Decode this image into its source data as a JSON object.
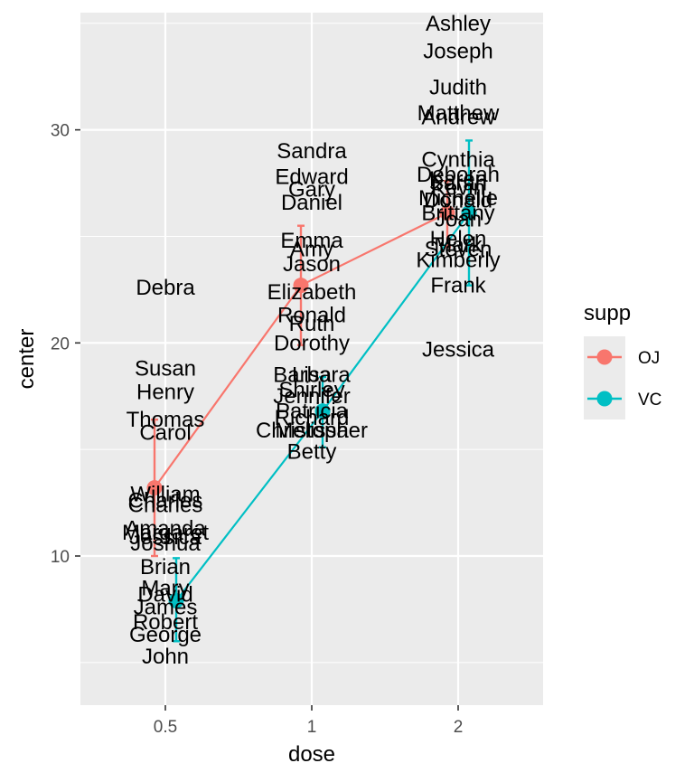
{
  "chart_data": {
    "type": "line",
    "title": "",
    "xlabel": "dose",
    "ylabel": "center",
    "categories": [
      "0.5",
      "1",
      "2"
    ],
    "ylim": [
      3,
      35.5
    ],
    "yticks": [
      10,
      20,
      30
    ],
    "grid": true,
    "legend": {
      "title": "supp",
      "position": "right",
      "entries": [
        "OJ",
        "VC"
      ]
    },
    "series": [
      {
        "name": "OJ",
        "color": "#F8766D",
        "means": [
          13.2,
          22.7,
          26.1
        ],
        "lower": [
          10.0,
          19.9,
          24.5
        ],
        "upper": [
          16.4,
          25.5,
          27.6
        ]
      },
      {
        "name": "VC",
        "color": "#00BFC4",
        "means": [
          7.9,
          16.8,
          26.1
        ],
        "lower": [
          6.0,
          15.1,
          22.7
        ],
        "upper": [
          9.9,
          18.4,
          29.5
        ]
      }
    ],
    "labels": [
      {
        "text": "Ashley",
        "x": "2",
        "y": 35.0
      },
      {
        "text": "Joseph",
        "x": "2",
        "y": 33.7
      },
      {
        "text": "Judith",
        "x": "2",
        "y": 32.0
      },
      {
        "text": "Matthew",
        "x": "2",
        "y": 30.8
      },
      {
        "text": "Andrew",
        "x": "2",
        "y": 30.6
      },
      {
        "text": "Cynthia",
        "x": "2",
        "y": 28.6
      },
      {
        "text": "Deborah",
        "x": "2",
        "y": 27.9
      },
      {
        "text": "Karen",
        "x": "2",
        "y": 27.7
      },
      {
        "text": "Sarah",
        "x": "2",
        "y": 27.5
      },
      {
        "text": "Kevin",
        "x": "2",
        "y": 27.3
      },
      {
        "text": "Michelle",
        "x": "2",
        "y": 26.8
      },
      {
        "text": "Donald",
        "x": "2",
        "y": 26.7
      },
      {
        "text": "Brittany",
        "x": "2",
        "y": 26.1
      },
      {
        "text": "Joan",
        "x": "2",
        "y": 25.8
      },
      {
        "text": "Helen",
        "x": "2",
        "y": 24.9
      },
      {
        "text": "Mark",
        "x": "2",
        "y": 24.6
      },
      {
        "text": "Steven",
        "x": "2",
        "y": 24.4
      },
      {
        "text": "Kimberly",
        "x": "2",
        "y": 23.9
      },
      {
        "text": "Frank",
        "x": "2",
        "y": 22.7
      },
      {
        "text": "Jessica",
        "x": "2",
        "y": 19.7
      },
      {
        "text": "Sandra",
        "x": "1",
        "y": 29.0
      },
      {
        "text": "Edward",
        "x": "1",
        "y": 27.8
      },
      {
        "text": "Gary",
        "x": "1",
        "y": 27.2
      },
      {
        "text": "Daniel",
        "x": "1",
        "y": 26.6
      },
      {
        "text": "Emma",
        "x": "1",
        "y": 24.8
      },
      {
        "text": "Amy",
        "x": "1",
        "y": 24.4
      },
      {
        "text": "Jason",
        "x": "1",
        "y": 23.7
      },
      {
        "text": "Elizabeth",
        "x": "1",
        "y": 22.4
      },
      {
        "text": "Ronald",
        "x": "1",
        "y": 21.3
      },
      {
        "text": "Ruth",
        "x": "1",
        "y": 20.9
      },
      {
        "text": "Dorothy",
        "x": "1",
        "y": 20.0
      },
      {
        "text": "Barbara",
        "x": "1",
        "y": 18.5
      },
      {
        "text": "Lisa",
        "x": "1",
        "y": 18.5
      },
      {
        "text": "Shirley",
        "x": "1",
        "y": 17.8
      },
      {
        "text": "Jennifer",
        "x": "1",
        "y": 17.5
      },
      {
        "text": "Patricia",
        "x": "1",
        "y": 16.8
      },
      {
        "text": "Richard",
        "x": "1",
        "y": 16.5
      },
      {
        "text": "Christopher",
        "x": "1",
        "y": 15.9
      },
      {
        "text": "Melissa",
        "x": "1",
        "y": 15.9
      },
      {
        "text": "Betty",
        "x": "1",
        "y": 14.9
      },
      {
        "text": "Debra",
        "x": "0.5",
        "y": 22.6
      },
      {
        "text": "Susan",
        "x": "0.5",
        "y": 18.8
      },
      {
        "text": "Henry",
        "x": "0.5",
        "y": 17.7
      },
      {
        "text": "Thomas",
        "x": "0.5",
        "y": 16.4
      },
      {
        "text": "Carol",
        "x": "0.5",
        "y": 15.8
      },
      {
        "text": "William",
        "x": "0.5",
        "y": 12.9
      },
      {
        "text": "Charles",
        "x": "0.5",
        "y": 12.6
      },
      {
        "text": "Charles",
        "x": "0.5",
        "y": 12.4
      },
      {
        "text": "Amanda",
        "x": "0.5",
        "y": 11.3
      },
      {
        "text": "Margaret",
        "x": "0.5",
        "y": 11.1
      },
      {
        "text": "Jessica",
        "x": "0.5",
        "y": 10.9
      },
      {
        "text": "Joshua",
        "x": "0.5",
        "y": 10.6
      },
      {
        "text": "Brian",
        "x": "0.5",
        "y": 9.5
      },
      {
        "text": "Mary",
        "x": "0.5",
        "y": 8.5
      },
      {
        "text": "David",
        "x": "0.5",
        "y": 8.2
      },
      {
        "text": "James",
        "x": "0.5",
        "y": 7.6
      },
      {
        "text": "Robert",
        "x": "0.5",
        "y": 6.9
      },
      {
        "text": "George",
        "x": "0.5",
        "y": 6.3
      },
      {
        "text": "John",
        "x": "0.5",
        "y": 5.3
      }
    ]
  }
}
